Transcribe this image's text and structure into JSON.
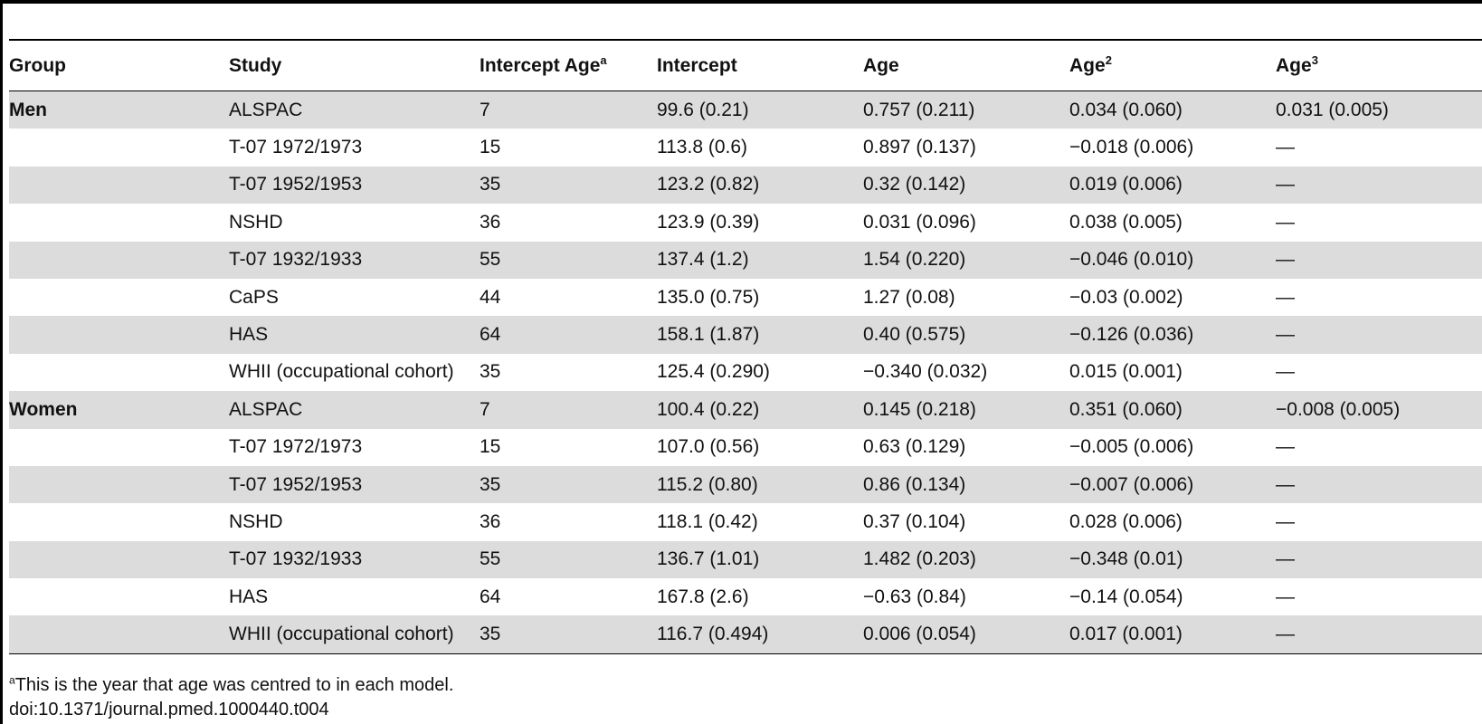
{
  "table": {
    "columns": [
      {
        "label": "Group",
        "sup": ""
      },
      {
        "label": "Study",
        "sup": ""
      },
      {
        "label": "Intercept Age",
        "sup": "a"
      },
      {
        "label": "Intercept",
        "sup": ""
      },
      {
        "label": "Age",
        "sup": ""
      },
      {
        "label": "Age",
        "sup": "2"
      },
      {
        "label": "Age",
        "sup": "3"
      }
    ],
    "rows": [
      [
        "Men",
        "ALSPAC",
        "7",
        "99.6 (0.21)",
        "0.757 (0.211)",
        "0.034 (0.060)",
        "0.031 (0.005)"
      ],
      [
        "",
        "T-07 1972/1973",
        "15",
        "113.8 (0.6)",
        "0.897 (0.137)",
        "−0.018 (0.006)",
        "—"
      ],
      [
        "",
        "T-07 1952/1953",
        "35",
        "123.2 (0.82)",
        "0.32 (0.142)",
        "0.019 (0.006)",
        "—"
      ],
      [
        "",
        "NSHD",
        "36",
        "123.9 (0.39)",
        "0.031 (0.096)",
        "0.038 (0.005)",
        "—"
      ],
      [
        "",
        "T-07 1932/1933",
        "55",
        "137.4 (1.2)",
        "1.54 (0.220)",
        "−0.046 (0.010)",
        "—"
      ],
      [
        "",
        "CaPS",
        "44",
        "135.0 (0.75)",
        "1.27 (0.08)",
        "−0.03 (0.002)",
        "—"
      ],
      [
        "",
        "HAS",
        "64",
        "158.1 (1.87)",
        "0.40 (0.575)",
        "−0.126 (0.036)",
        "—"
      ],
      [
        "",
        "WHII (occupational cohort)",
        "35",
        "125.4 (0.290)",
        "−0.340 (0.032)",
        "0.015 (0.001)",
        "—"
      ],
      [
        "Women",
        "ALSPAC",
        "7",
        "100.4 (0.22)",
        "0.145 (0.218)",
        "0.351 (0.060)",
        "−0.008 (0.005)"
      ],
      [
        "",
        "T-07 1972/1973",
        "15",
        "107.0 (0.56)",
        "0.63 (0.129)",
        "−0.005 (0.006)",
        "—"
      ],
      [
        "",
        "T-07 1952/1953",
        "35",
        "115.2 (0.80)",
        "0.86 (0.134)",
        "−0.007 (0.006)",
        "—"
      ],
      [
        "",
        "NSHD",
        "36",
        "118.1 (0.42)",
        "0.37 (0.104)",
        "0.028 (0.006)",
        "—"
      ],
      [
        "",
        "T-07 1932/1933",
        "55",
        "136.7 (1.01)",
        "1.482 (0.203)",
        "−0.348 (0.01)",
        "—"
      ],
      [
        "",
        "HAS",
        "64",
        "167.8 (2.6)",
        "−0.63 (0.84)",
        "−0.14 (0.054)",
        "—"
      ],
      [
        "",
        "WHII (occupational cohort)",
        "35",
        "116.7 (0.494)",
        "0.006 (0.054)",
        "0.017 (0.001)",
        "—"
      ]
    ]
  },
  "footnote": {
    "sup": "a",
    "text": "This is the year that age was centred to in each model."
  },
  "doi": "doi:10.1371/journal.pmed.1000440.t004",
  "colors": {
    "shaded_row": "#dcdcdc",
    "rule": "#000000"
  }
}
